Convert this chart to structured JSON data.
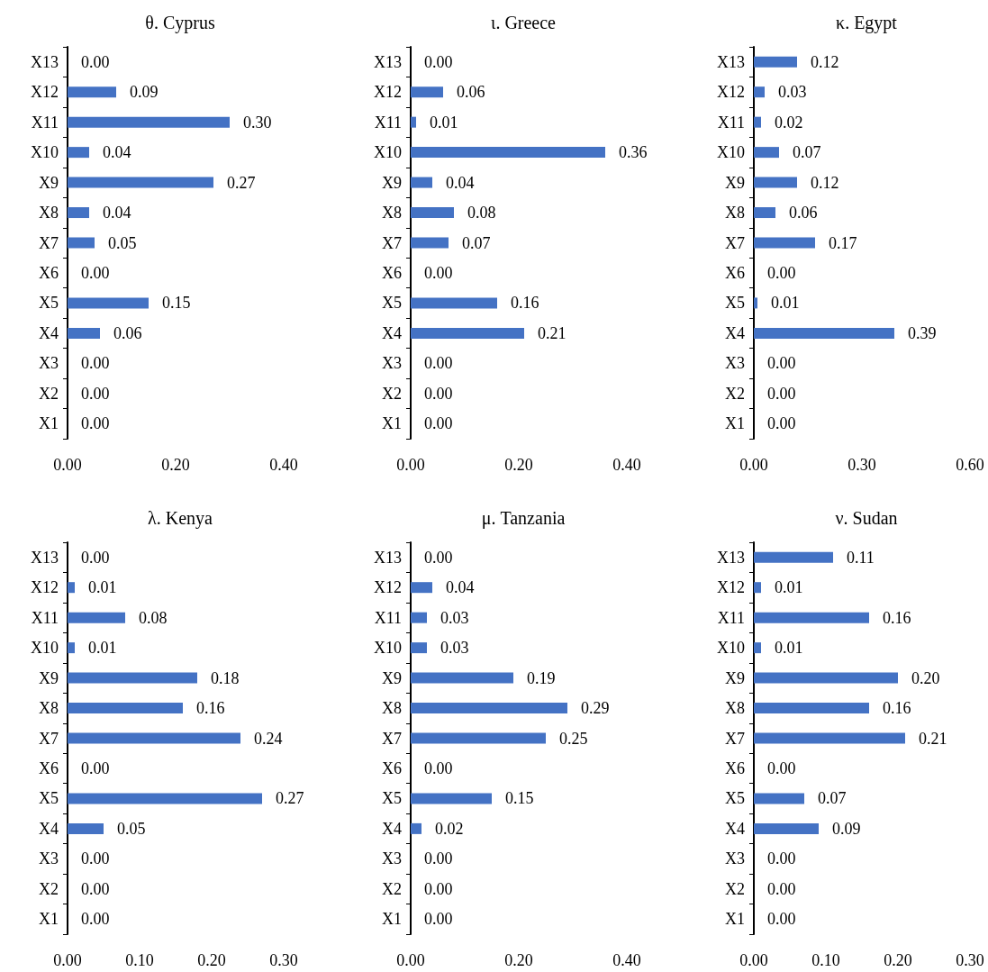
{
  "chart_data": [
    {
      "type": "bar",
      "orientation": "horizontal",
      "title": "θ. Cyprus",
      "categories": [
        "X13",
        "X12",
        "X11",
        "X10",
        "X9",
        "X8",
        "X7",
        "X6",
        "X5",
        "X4",
        "X3",
        "X2",
        "X1"
      ],
      "series": [
        {
          "color": "#4472c4",
          "values": [
            0.0,
            0.09,
            0.3,
            0.04,
            0.27,
            0.04,
            0.05,
            0.0,
            0.15,
            0.06,
            0.0,
            0.0,
            0.0
          ],
          "value_labels": [
            "0.00",
            "0.09",
            "0.30",
            "0.04",
            "0.27",
            "0.04",
            "0.05",
            "0.00",
            "0.15",
            "0.06",
            "0.00",
            "0.00",
            "0.00"
          ]
        }
      ],
      "xlim": [
        0,
        0.4
      ],
      "xticks": [
        {
          "value": 0,
          "label": "0.00"
        },
        {
          "value": 0.2,
          "label": "0.20"
        },
        {
          "value": 0.4,
          "label": "0.40"
        }
      ]
    },
    {
      "type": "bar",
      "orientation": "horizontal",
      "title": "ι. Greece",
      "categories": [
        "X13",
        "X12",
        "X11",
        "X10",
        "X9",
        "X8",
        "X7",
        "X6",
        "X5",
        "X4",
        "X3",
        "X2",
        "X1"
      ],
      "series": [
        {
          "color": "#4472c4",
          "values": [
            0.0,
            0.06,
            0.01,
            0.36,
            0.04,
            0.08,
            0.07,
            0.0,
            0.16,
            0.21,
            0.0,
            0.0,
            0.0
          ],
          "value_labels": [
            "0.00",
            "0.06",
            "0.01",
            "0.36",
            "0.04",
            "0.08",
            "0.07",
            "0.00",
            "0.16",
            "0.21",
            "0.00",
            "0.00",
            "0.00"
          ]
        }
      ],
      "xlim": [
        0,
        0.4
      ],
      "xticks": [
        {
          "value": 0,
          "label": "0.00"
        },
        {
          "value": 0.2,
          "label": "0.20"
        },
        {
          "value": 0.4,
          "label": "0.40"
        }
      ]
    },
    {
      "type": "bar",
      "orientation": "horizontal",
      "title": "κ. Egypt",
      "categories": [
        "X13",
        "X12",
        "X11",
        "X10",
        "X9",
        "X8",
        "X7",
        "X6",
        "X5",
        "X4",
        "X3",
        "X2",
        "X1"
      ],
      "series": [
        {
          "color": "#4472c4",
          "values": [
            0.12,
            0.03,
            0.02,
            0.07,
            0.12,
            0.06,
            0.17,
            0.0,
            0.01,
            0.39,
            0.0,
            0.0,
            0.0
          ],
          "value_labels": [
            "0.12",
            "0.03",
            "0.02",
            "0.07",
            "0.12",
            "0.06",
            "0.17",
            "0.00",
            "0.01",
            "0.39",
            "0.00",
            "0.00",
            "0.00"
          ]
        }
      ],
      "xlim": [
        0,
        0.6
      ],
      "xticks": [
        {
          "value": 0,
          "label": "0.00"
        },
        {
          "value": 0.3,
          "label": "0.30"
        },
        {
          "value": 0.6,
          "label": "0.60"
        }
      ]
    },
    {
      "type": "bar",
      "orientation": "horizontal",
      "title": "λ. Kenya",
      "categories": [
        "X13",
        "X12",
        "X11",
        "X10",
        "X9",
        "X8",
        "X7",
        "X6",
        "X5",
        "X4",
        "X3",
        "X2",
        "X1"
      ],
      "series": [
        {
          "color": "#4472c4",
          "values": [
            0.0,
            0.01,
            0.08,
            0.01,
            0.18,
            0.16,
            0.24,
            0.0,
            0.27,
            0.05,
            0.0,
            0.0,
            0.0
          ],
          "value_labels": [
            "0.00",
            "0.01",
            "0.08",
            "0.01",
            "0.18",
            "0.16",
            "0.24",
            "0.00",
            "0.27",
            "0.05",
            "0.00",
            "0.00",
            "0.00"
          ]
        }
      ],
      "xlim": [
        0,
        0.3
      ],
      "xticks": [
        {
          "value": 0,
          "label": "0.00"
        },
        {
          "value": 0.1,
          "label": "0.10"
        },
        {
          "value": 0.2,
          "label": "0.20"
        },
        {
          "value": 0.3,
          "label": "0.30"
        }
      ]
    },
    {
      "type": "bar",
      "orientation": "horizontal",
      "title": "μ. Tanzania",
      "categories": [
        "X13",
        "X12",
        "X11",
        "X10",
        "X9",
        "X8",
        "X7",
        "X6",
        "X5",
        "X4",
        "X3",
        "X2",
        "X1"
      ],
      "series": [
        {
          "color": "#4472c4",
          "values": [
            0.0,
            0.04,
            0.03,
            0.03,
            0.19,
            0.29,
            0.25,
            0.0,
            0.15,
            0.02,
            0.0,
            0.0,
            0.0
          ],
          "value_labels": [
            "0.00",
            "0.04",
            "0.03",
            "0.03",
            "0.19",
            "0.29",
            "0.25",
            "0.00",
            "0.15",
            "0.02",
            "0.00",
            "0.00",
            "0.00"
          ]
        }
      ],
      "xlim": [
        0,
        0.4
      ],
      "xticks": [
        {
          "value": 0,
          "label": "0.00"
        },
        {
          "value": 0.2,
          "label": "0.20"
        },
        {
          "value": 0.4,
          "label": "0.40"
        }
      ]
    },
    {
      "type": "bar",
      "orientation": "horizontal",
      "title": "ν. Sudan",
      "categories": [
        "X13",
        "X12",
        "X11",
        "X10",
        "X9",
        "X8",
        "X7",
        "X6",
        "X5",
        "X4",
        "X3",
        "X2",
        "X1"
      ],
      "series": [
        {
          "color": "#4472c4",
          "values": [
            0.11,
            0.01,
            0.16,
            0.01,
            0.2,
            0.16,
            0.21,
            0.0,
            0.07,
            0.09,
            0.0,
            0.0,
            0.0
          ],
          "value_labels": [
            "0.11",
            "0.01",
            "0.16",
            "0.01",
            "0.20",
            "0.16",
            "0.21",
            "0.00",
            "0.07",
            "0.09",
            "0.00",
            "0.00",
            "0.00"
          ]
        }
      ],
      "xlim": [
        0,
        0.3
      ],
      "xticks": [
        {
          "value": 0,
          "label": "0.00"
        },
        {
          "value": 0.1,
          "label": "0.10"
        },
        {
          "value": 0.2,
          "label": "0.20"
        },
        {
          "value": 0.3,
          "label": "0.30"
        }
      ]
    }
  ]
}
